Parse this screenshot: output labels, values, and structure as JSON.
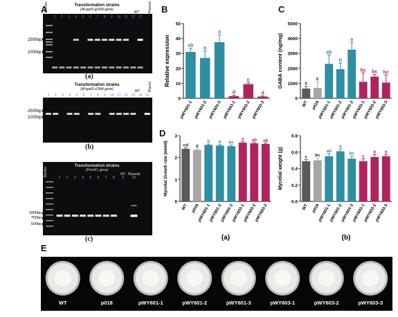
{
  "panel_labels": {
    "A": "A",
    "B": "B",
    "C": "C",
    "D": "D",
    "E": "E"
  },
  "gel_a": {
    "title": "Transformation strains",
    "subtitle": "(Af-gad3 gDNA gene)",
    "marker": "Marker",
    "lanes": [
      "1",
      "2",
      "3",
      "4",
      "5",
      "6",
      "7",
      "8",
      "9",
      "10",
      "11",
      "12",
      "13"
    ],
    "wt": "WT",
    "plasmid": "Plasmid",
    "bp_labels": [
      "2500bp",
      "1000bp"
    ],
    "caption": "(a)",
    "band_lanes": [
      4,
      6,
      7,
      8,
      9,
      10,
      11,
      13
    ]
  },
  "gel_b": {
    "title": "Transformation strains",
    "subtitle": "(Af-gad3 cDNA gene)",
    "lanes": [
      "1",
      "2",
      "3",
      "4",
      "5",
      "6",
      "7",
      "8",
      "9",
      "10",
      "11",
      "12",
      "13"
    ],
    "wt": "WT",
    "lane14": "14",
    "plasmid": "Plasmid",
    "lane15": "15",
    "bp_labels": [
      "2500bp",
      "1000bp"
    ],
    "caption": "(b)",
    "band_lanes": [
      1,
      2,
      4,
      5,
      7,
      8,
      10,
      11,
      12,
      13,
      15
    ]
  },
  "gel_c": {
    "marker": "Marker",
    "title": "Transformation strains",
    "subtitle": "(PrimR1 gene)",
    "lanes": [
      "1",
      "2",
      "3",
      "4",
      "5",
      "6",
      "7",
      "8"
    ],
    "wt": "WT",
    "lane9": "9",
    "plasmid": "Plasmid",
    "lane10": "10",
    "bp_labels": [
      "1000bp",
      "750bp",
      "500bp"
    ],
    "caption": "(c)"
  },
  "strains6": [
    "pWY601-1",
    "pWY601-2",
    "pWY601-3",
    "pWY603-1",
    "pWY603-2",
    "pWY603-3"
  ],
  "strains8": [
    "WT",
    "p018",
    "pWY601-1",
    "pWY601-2",
    "pWY601-3",
    "pWY603-1",
    "pWY603-2",
    "pWY603-3"
  ],
  "colors": {
    "teal": "#2e8fa3",
    "magenta": "#b0245e",
    "darkgray": "#5a5a5a",
    "lightgray": "#a6a6a6"
  },
  "chart_data": [
    {
      "panel": "B",
      "type": "bar",
      "ylabel": "Relative expression",
      "ylim": [
        0,
        50
      ],
      "yticks": [
        0,
        10,
        20,
        30,
        40,
        50
      ],
      "categories": [
        "pWY601-1",
        "pWY601-2",
        "pWY601-3",
        "pWY603-1",
        "pWY603-2",
        "pWY603-3"
      ],
      "values": [
        31,
        27,
        37.5,
        1.5,
        9.5,
        1.2
      ],
      "errors": [
        2.5,
        4.5,
        5,
        0.5,
        1,
        0.4
      ],
      "letters": [
        "ab",
        "b",
        "a",
        "d",
        "c",
        "d"
      ]
    },
    {
      "panel": "C",
      "type": "bar",
      "ylabel": "GABA content (ng/mg)",
      "ylim": [
        0,
        5000
      ],
      "yticks": [
        0,
        1000,
        2000,
        3000,
        4000,
        5000
      ],
      "categories": [
        "WT",
        "p018",
        "pWY601-1",
        "pWY601-2",
        "pWY601-3",
        "pWY603-1",
        "pWY603-2",
        "pWY603-3"
      ],
      "values": [
        650,
        700,
        2300,
        1950,
        3250,
        1100,
        1450,
        1050
      ],
      "errors": [
        150,
        400,
        600,
        400,
        500,
        600,
        150,
        500
      ],
      "letters": [
        "c",
        "c",
        "ab",
        "b",
        "a",
        "bc",
        "bc",
        "bc"
      ]
    },
    {
      "panel": "D(a)",
      "type": "bar",
      "ylabel": "Mycelial Growth rate (mm/d)",
      "ylim": [
        0,
        3
      ],
      "yticks": [
        0,
        1,
        2,
        3
      ],
      "categories": [
        "WT",
        "p018",
        "pWY601-1",
        "pWY601-2",
        "pWY601-3",
        "pWY603-1",
        "pWY603-2",
        "pWY603-3"
      ],
      "values": [
        2.4,
        2.35,
        2.58,
        2.55,
        2.52,
        2.68,
        2.65,
        2.62
      ],
      "errors": [
        0.05,
        0.05,
        0.04,
        0.04,
        0.05,
        0.05,
        0.04,
        0.04
      ],
      "letters": [
        "cd",
        "d",
        "b",
        "b",
        "bc",
        "a",
        "ab",
        "ab"
      ],
      "caption": "(a)"
    },
    {
      "panel": "D(b)",
      "type": "bar",
      "ylabel": "Mycelial weight (g)",
      "ylim": [
        0,
        0.8
      ],
      "yticks": [
        0,
        0.2,
        0.4,
        0.6,
        0.8
      ],
      "ytick_labels": [
        "0.0",
        "0.2",
        "0.4",
        "0.6",
        "0.8"
      ],
      "categories": [
        "WT",
        "p018",
        "pWY601-1",
        "pWY601-2",
        "pWY601-3",
        "pWY603-1",
        "pWY603-2",
        "pWY603-3"
      ],
      "values": [
        0.49,
        0.5,
        0.55,
        0.61,
        0.52,
        0.49,
        0.54,
        0.55
      ],
      "errors": [
        0.02,
        0.03,
        0.03,
        0.03,
        0.03,
        0.03,
        0.03,
        0.02
      ],
      "letters": [
        "c",
        "bc",
        "ab",
        "a",
        "bc",
        "c",
        "b",
        "b"
      ],
      "caption": "(b)"
    }
  ],
  "photo_labels": [
    "WT",
    "p018",
    "pWY601-1",
    "pWY601-2",
    "pWY601-3",
    "pWY603-1",
    "pWY603-2",
    "pWY603-3"
  ]
}
